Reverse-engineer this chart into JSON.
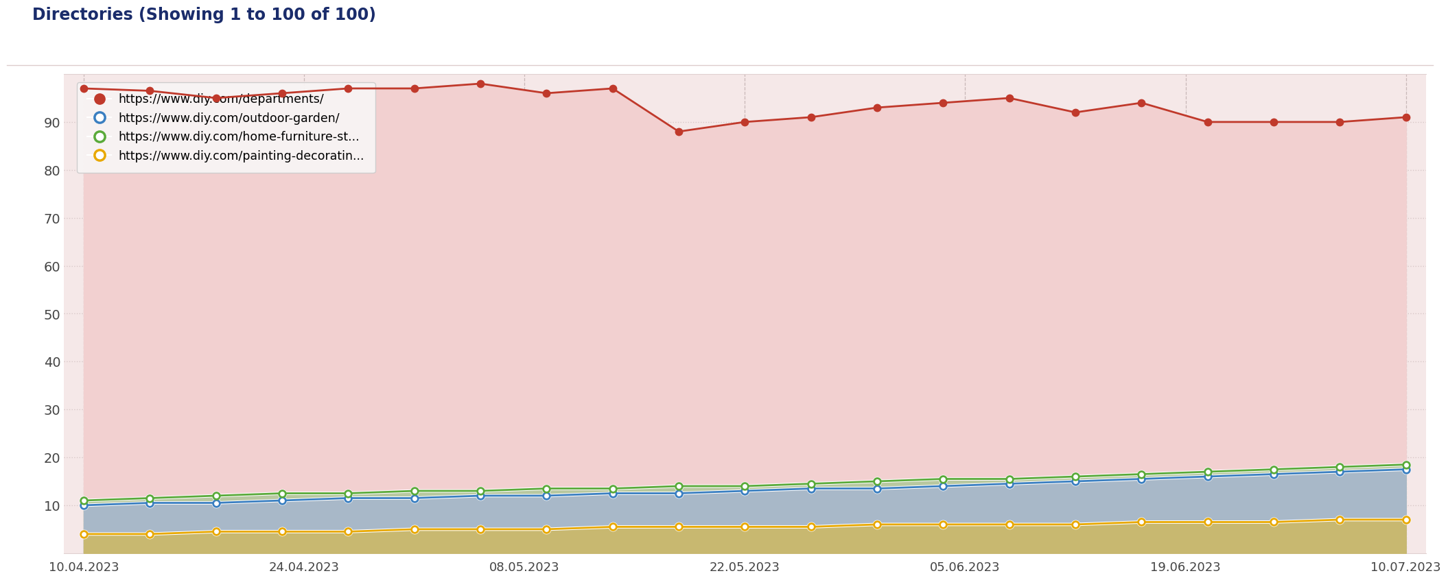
{
  "title": "Directories (Showing 1 to 100 of 100)",
  "title_color": "#1a2c6b",
  "background_color": "#ffffff",
  "plot_bg_color": "#f5e8e8",
  "x_labels": [
    "10.04.2023",
    "24.04.2023",
    "08.05.2023",
    "22.05.2023",
    "05.06.2023",
    "19.06.2023",
    "10.07.2023"
  ],
  "yticks": [
    10,
    20,
    30,
    40,
    50,
    60,
    70,
    80,
    90
  ],
  "ylim": [
    0,
    100
  ],
  "series": [
    {
      "label": "https://www.diy.com/departments/",
      "color": "#c0392b",
      "fill_color": "#f2d0d0",
      "marker_fill": "#c0392b",
      "values": [
        97,
        96.5,
        95,
        96,
        97,
        97,
        98,
        96,
        97,
        88,
        90,
        91,
        93,
        94,
        95,
        92,
        94,
        90,
        90,
        90,
        91
      ]
    },
    {
      "label": "https://www.diy.com/outdoor-garden/",
      "color": "#3a7fc1",
      "fill_color": "#a8b8c8",
      "marker_fill": "#ffffff",
      "values": [
        10,
        10.5,
        10.5,
        11,
        11.5,
        11.5,
        12,
        12,
        12.5,
        12.5,
        13,
        13.5,
        13.5,
        14,
        14.5,
        15,
        15.5,
        16,
        16.5,
        17,
        17.5
      ]
    },
    {
      "label": "https://www.diy.com/home-furniture-st...",
      "color": "#5aaa3a",
      "fill_color": "#b8c8a0",
      "marker_fill": "#ffffff",
      "values": [
        11,
        11.5,
        12,
        12.5,
        12.5,
        13,
        13,
        13.5,
        13.5,
        14,
        14,
        14.5,
        15,
        15.5,
        15.5,
        16,
        16.5,
        17,
        17.5,
        18,
        18.5
      ]
    },
    {
      "label": "https://www.diy.com/painting-decoratin...",
      "color": "#e8a800",
      "fill_color": "#c8b870",
      "marker_fill": "#ffffff",
      "values": [
        4,
        4,
        4.5,
        4.5,
        4.5,
        5,
        5,
        5,
        5.5,
        5.5,
        5.5,
        5.5,
        6,
        6,
        6,
        6,
        6.5,
        6.5,
        6.5,
        7,
        7
      ]
    }
  ],
  "grid_color": "#d8c8c8",
  "vline_color": "#c8b8b8",
  "legend_bg": "#f8f4f4",
  "legend_edge": "#cccccc",
  "n_points": 21
}
